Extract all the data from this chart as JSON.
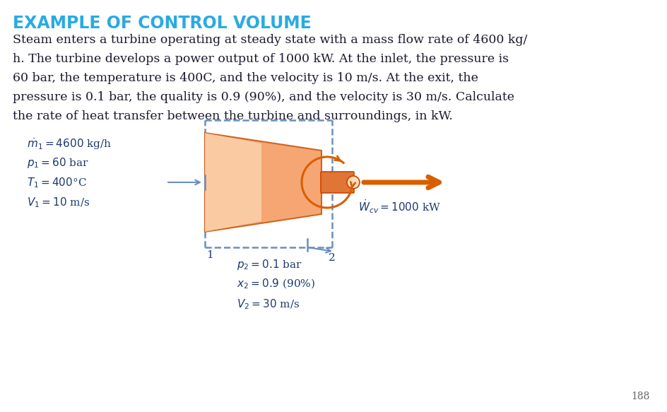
{
  "title": "EXAMPLE OF CONTROL VOLUME",
  "title_color": "#29ABE2",
  "body_lines": [
    "Steam enters a turbine operating at steady state with a mass flow rate of 4600 kg/",
    "h. The turbine develops a power output of 1000 kW. At the inlet, the pressure is",
    "60 bar, the temperature is 400C, and the velocity is 10 m/s. At the exit, the",
    "pressure is 0.1 bar, the quality is 0.9 (90%), and the velocity is 30 m/s. Calculate",
    "the rate of heat transfer between the turbine and surroundings, in kW."
  ],
  "body_color": "#1a1a2e",
  "inlet_labels": [
    "$\\dot{m}_1 = 4600$ kg/h",
    "$p_1 = 60$ bar",
    "$T_1 = 400$°C",
    "$V_1 = 10$ m/s"
  ],
  "outlet_labels": [
    "$p_2 = 0.1$ bar",
    "$x_2 = 0.9$ (90%)",
    "$V_2 = 30$ m/s"
  ],
  "work_label": "$\\dot{W}_{cv} = 1000$ kW",
  "turbine_color": "#F5A673",
  "turbine_highlight": "#FDDCB8",
  "dashed_color": "#6B8EBF",
  "arrow_color": "#D95E00",
  "label_color": "#1C3A6E",
  "page_number": "188",
  "bg_color": "#FFFFFF",
  "title_fontsize": 17,
  "body_fontsize": 12.5,
  "label_fontsize": 11
}
